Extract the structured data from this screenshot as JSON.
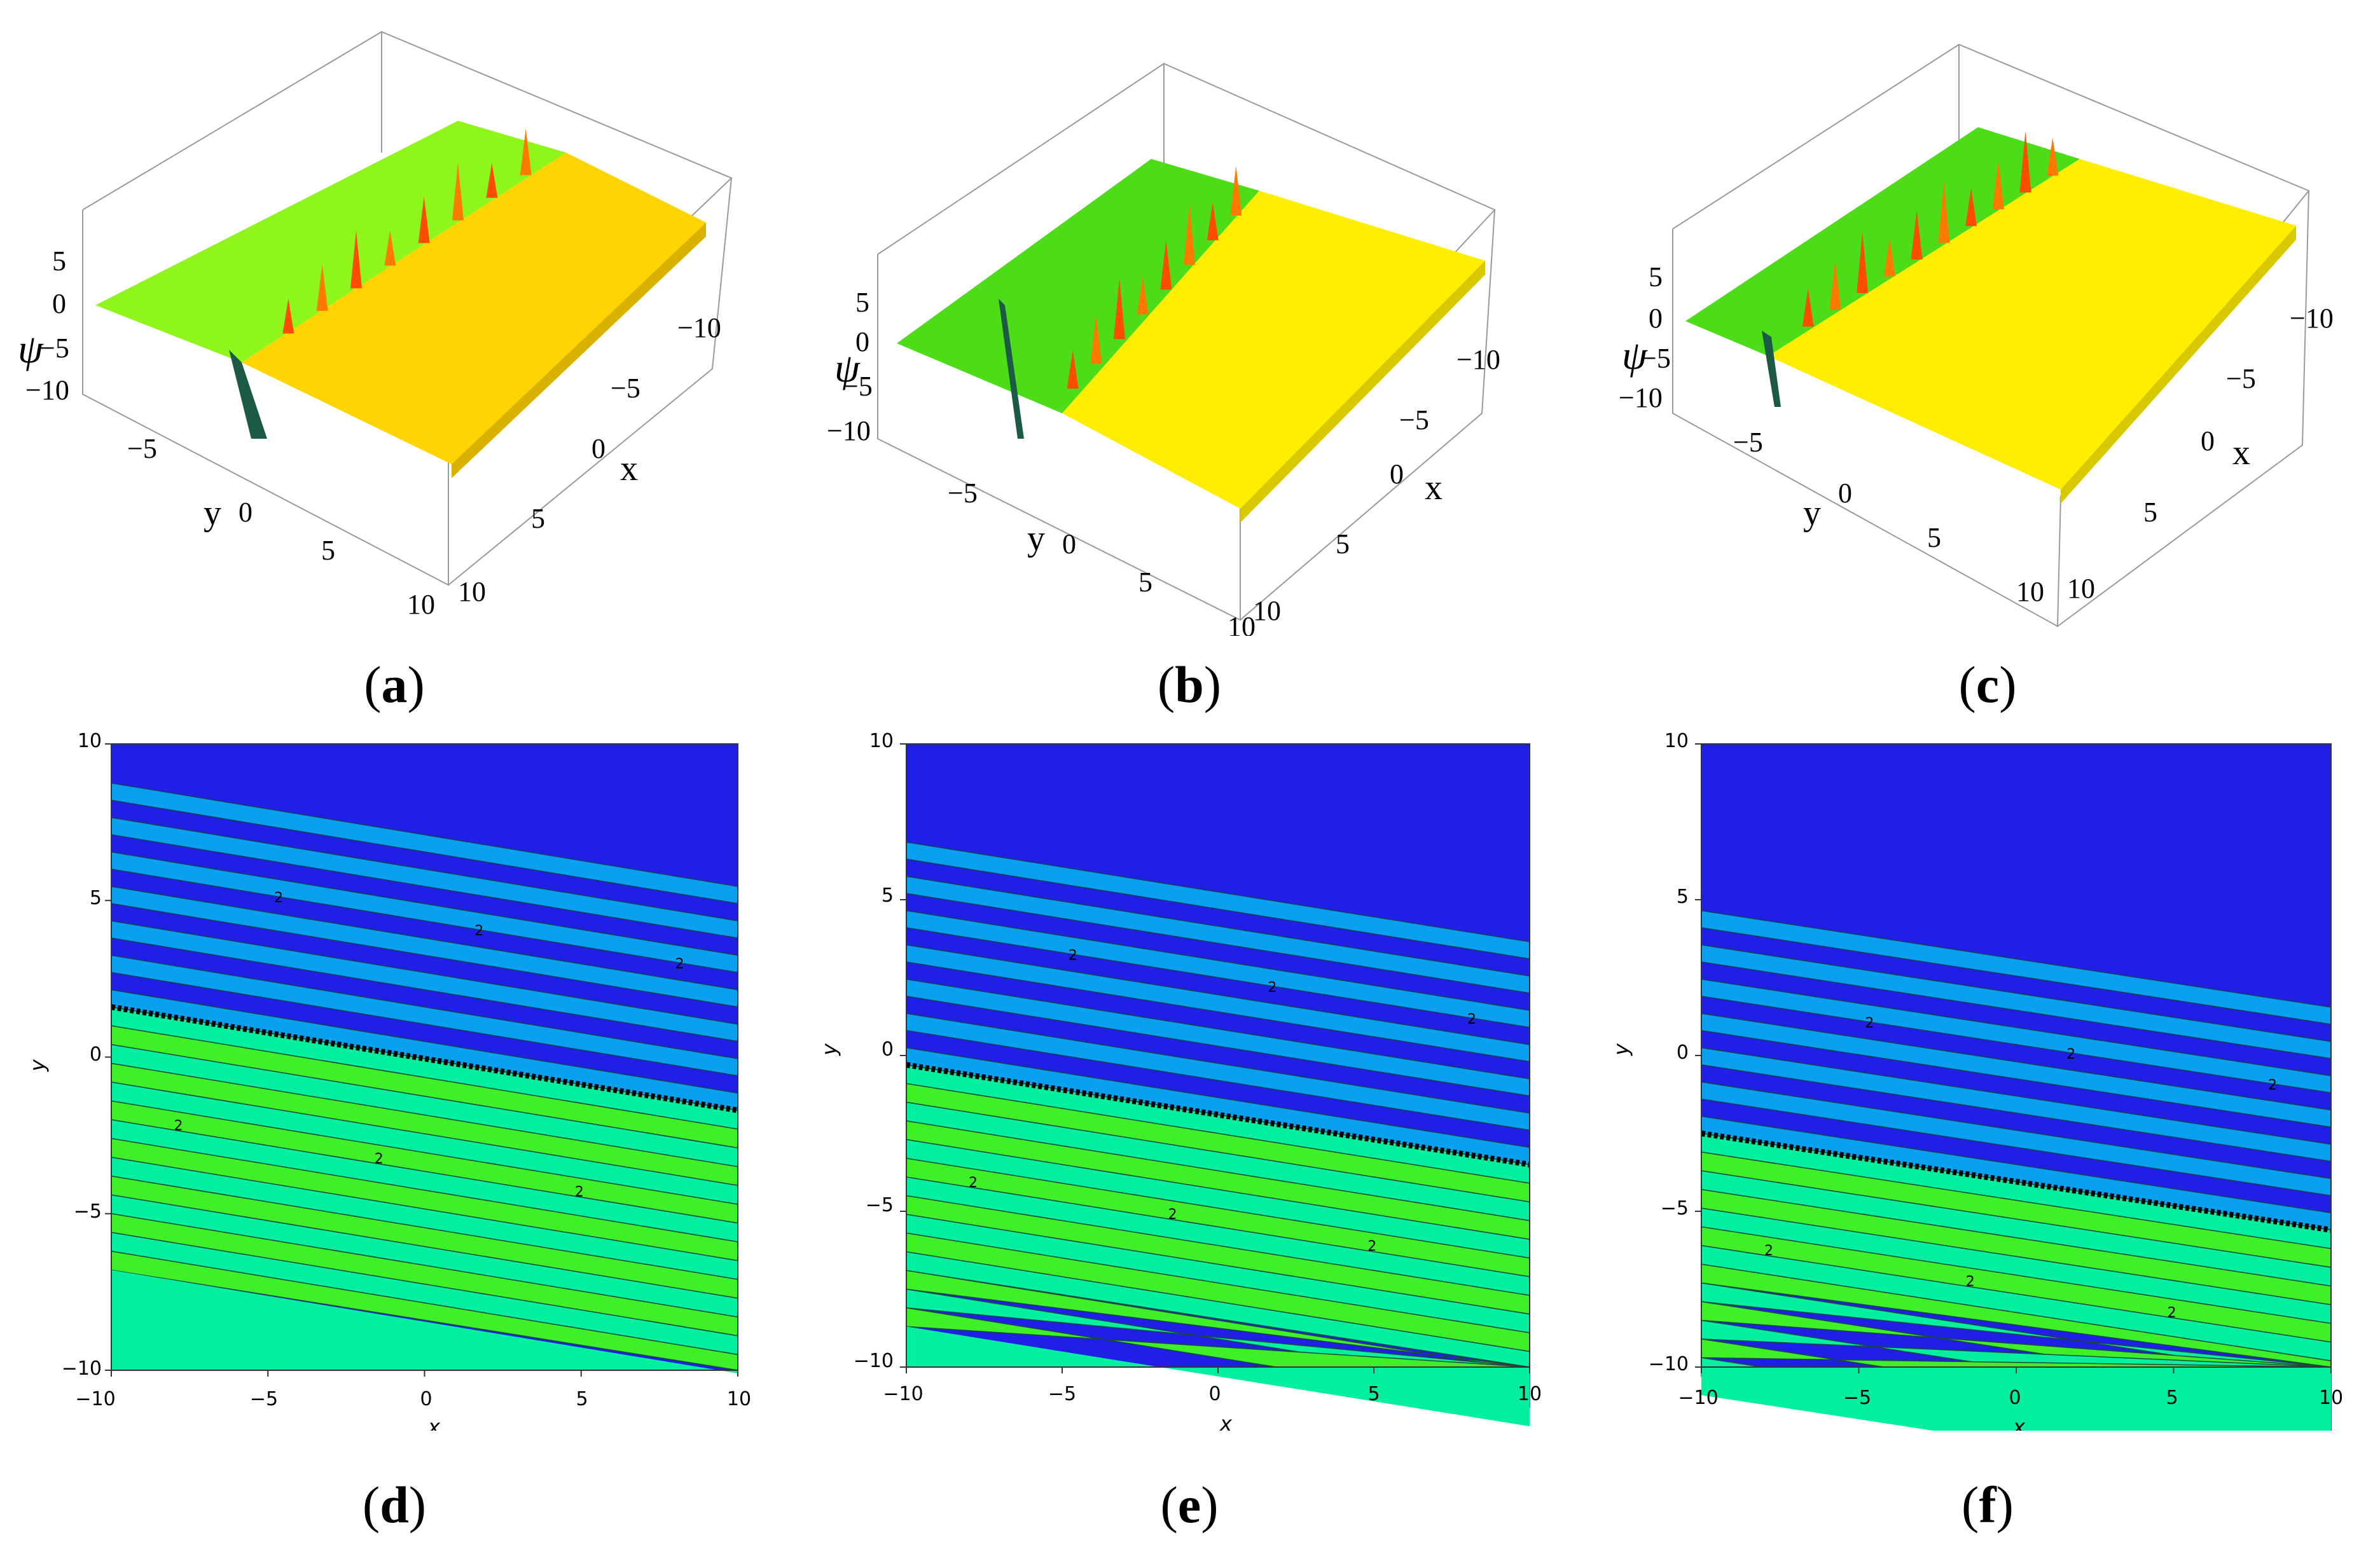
{
  "colors": {
    "surface_green": "#8ef61a",
    "surface_yellow": "#ffd400",
    "surface_yellow_bright": "#ffee00",
    "peak_red": "#ff5500",
    "trough_dark": "#1d5a45",
    "contour_dark_blue": "#1f1fe6",
    "contour_light_blue": "#0aa0f0",
    "contour_mint": "#00f0a0",
    "contour_green": "#3ef028"
  },
  "panels_3d": [
    {
      "id": "a",
      "caption": "a",
      "z_label": "ψ",
      "x_label": "x",
      "y_label": "y",
      "z_ticks": [
        "5",
        "0",
        "−5",
        "−10"
      ],
      "x_ticks": [
        "−10",
        "−5",
        "0",
        "5",
        "10"
      ],
      "y_ticks": [
        "−5",
        "0",
        "5",
        "10"
      ]
    },
    {
      "id": "b",
      "caption": "b",
      "z_label": "ψ",
      "x_label": "x",
      "y_label": "y",
      "z_ticks": [
        "5",
        "0",
        "−5",
        "−10"
      ],
      "x_ticks": [
        "−10",
        "−5",
        "0",
        "5",
        "10"
      ],
      "y_ticks": [
        "−5",
        "0",
        "5",
        "10"
      ]
    },
    {
      "id": "c",
      "caption": "c",
      "z_label": "ψ",
      "x_label": "x",
      "y_label": "y",
      "z_ticks": [
        "5",
        "0",
        "−5",
        "−10"
      ],
      "x_ticks": [
        "−10",
        "−5",
        "0",
        "5",
        "10"
      ],
      "y_ticks": [
        "−5",
        "0",
        "5",
        "10"
      ]
    }
  ],
  "chart_data": [
    {
      "type": "surface",
      "panel": "a",
      "zlabel": "ψ",
      "xlabel": "x",
      "ylabel": "y",
      "xlim": [
        -10,
        10
      ],
      "ylim": [
        -10,
        10
      ],
      "zlim": [
        -10,
        5
      ],
      "wave_line": {
        "y_at_x_minus10": 1.6,
        "y_at_x_10": -1.7
      }
    },
    {
      "type": "surface",
      "panel": "b",
      "zlabel": "ψ",
      "xlabel": "x",
      "ylabel": "y",
      "xlim": [
        -10,
        10
      ],
      "ylim": [
        -10,
        10
      ],
      "zlim": [
        -10,
        5
      ],
      "wave_line": {
        "y_at_x_minus10": -0.3,
        "y_at_x_10": -3.5
      }
    },
    {
      "type": "surface",
      "panel": "c",
      "zlabel": "ψ",
      "xlabel": "x",
      "ylabel": "y",
      "xlim": [
        -10,
        10
      ],
      "ylim": [
        -10,
        10
      ],
      "zlim": [
        -10,
        5
      ],
      "wave_line": {
        "y_at_x_minus10": -2.5,
        "y_at_x_10": -5.6
      }
    },
    {
      "type": "contour",
      "panel": "d",
      "caption": "d",
      "xlabel": "x",
      "ylabel": "y",
      "xlim": [
        -10,
        10
      ],
      "ylim": [
        -10,
        10
      ],
      "x_ticks": [
        "−10",
        "−5",
        "0",
        "5",
        "10"
      ],
      "y_ticks": [
        "10",
        "5",
        "0",
        "−5",
        "−10"
      ],
      "contour_label": "2",
      "wave_line": {
        "y_at_x_minus10": 1.6,
        "y_at_x_10": -1.7
      }
    },
    {
      "type": "contour",
      "panel": "e",
      "caption": "e",
      "xlabel": "x",
      "ylabel": "y",
      "xlim": [
        -10,
        10
      ],
      "ylim": [
        -10,
        10
      ],
      "x_ticks": [
        "−10",
        "−5",
        "0",
        "5",
        "10"
      ],
      "y_ticks": [
        "10",
        "5",
        "0",
        "−5",
        "−10"
      ],
      "contour_label": "2",
      "wave_line": {
        "y_at_x_minus10": -0.3,
        "y_at_x_10": -3.5
      }
    },
    {
      "type": "contour",
      "panel": "f",
      "caption": "f",
      "xlabel": "x",
      "ylabel": "y",
      "xlim": [
        -10,
        10
      ],
      "ylim": [
        -10,
        10
      ],
      "x_ticks": [
        "−10",
        "−5",
        "0",
        "5",
        "10"
      ],
      "y_ticks": [
        "10",
        "5",
        "0",
        "−5",
        "−10"
      ],
      "contour_label": "2",
      "wave_line": {
        "y_at_x_minus10": -2.5,
        "y_at_x_10": -5.6
      }
    }
  ]
}
